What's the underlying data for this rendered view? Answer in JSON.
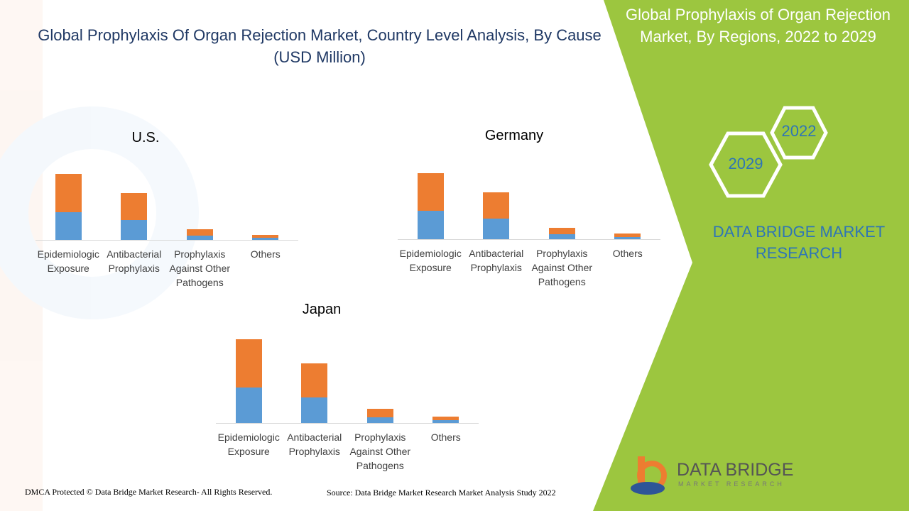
{
  "title": "Global Prophylaxis Of Organ Rejection Market, Country Level Analysis, By Cause (USD Million)",
  "chart_data": [
    {
      "type": "bar",
      "stacked": true,
      "title": "U.S.",
      "categories": [
        "Epidemiologic Exposure",
        "Antibacterial Prophylaxis",
        "Prophylaxis Against Other Pathogens",
        "Others"
      ],
      "series": [
        {
          "color": "#5b9bd5",
          "values": [
            39,
            28,
            6,
            3
          ]
        },
        {
          "color": "#ed7d31",
          "values": [
            54,
            38,
            9,
            4
          ]
        }
      ],
      "ylim": [
        0,
        100
      ]
    },
    {
      "type": "bar",
      "stacked": true,
      "title": "Germany",
      "categories": [
        "Epidemiologic Exposure",
        "Antibacterial Prophylaxis",
        "Prophylaxis Against Other Pathogens",
        "Others"
      ],
      "series": [
        {
          "color": "#5b9bd5",
          "values": [
            40,
            29,
            7,
            3
          ]
        },
        {
          "color": "#ed7d31",
          "values": [
            53,
            37,
            9,
            5
          ]
        }
      ],
      "ylim": [
        0,
        100
      ]
    },
    {
      "type": "bar",
      "stacked": true,
      "title": "Japan",
      "categories": [
        "Epidemiologic Exposure",
        "Antibacterial Prophylaxis",
        "Prophylaxis Against Other Pathogens",
        "Others"
      ],
      "series": [
        {
          "color": "#5b9bd5",
          "values": [
            50,
            36,
            8,
            4
          ]
        },
        {
          "color": "#ed7d31",
          "values": [
            68,
            48,
            12,
            5
          ]
        }
      ],
      "ylim": [
        0,
        125
      ]
    }
  ],
  "side_panel": {
    "title": "Global  Prophylaxis of Organ Rejection Market, By Regions, 2022 to 2029",
    "years": [
      "2022",
      "2029"
    ],
    "brand": "DATA BRIDGE MARKET RESEARCH"
  },
  "logo": {
    "name": "DATA BRIDGE",
    "tagline": "MARKET RESEARCH"
  },
  "footer": {
    "copyright": "DMCA Protected © Data Bridge Market Research- All Rights Reserved.",
    "source": "Source: Data Bridge Market Research Market Analysis Study 2022"
  }
}
